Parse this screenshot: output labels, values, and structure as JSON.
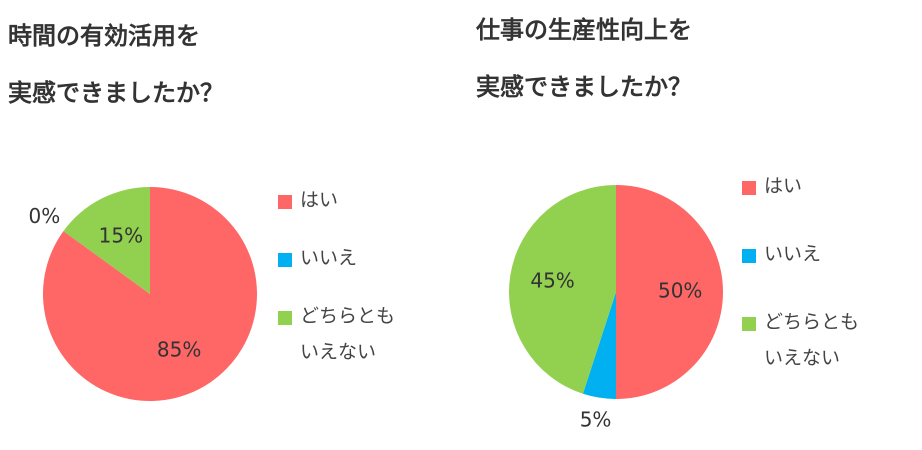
{
  "chart_data": [
    {
      "type": "pie",
      "title": [
        "時間の有効活用を",
        "実感できましたか？"
      ],
      "categories": [
        "はい",
        "いいえ",
        "どちらともいえない"
      ],
      "values": [
        85,
        0,
        15
      ],
      "value_labels": [
        "85%",
        "0%",
        "15%"
      ],
      "colors": [
        "#ff6666",
        "#00b0f0",
        "#92d050"
      ]
    },
    {
      "type": "pie",
      "title": [
        "仕事の生産性向上を",
        "実感できましたか？"
      ],
      "categories": [
        "はい",
        "いいえ",
        "どちらともいえない"
      ],
      "values": [
        50,
        5,
        45
      ],
      "value_labels": [
        "50%",
        "5%",
        "45%"
      ],
      "colors": [
        "#ff6666",
        "#00b0f0",
        "#92d050"
      ]
    }
  ]
}
